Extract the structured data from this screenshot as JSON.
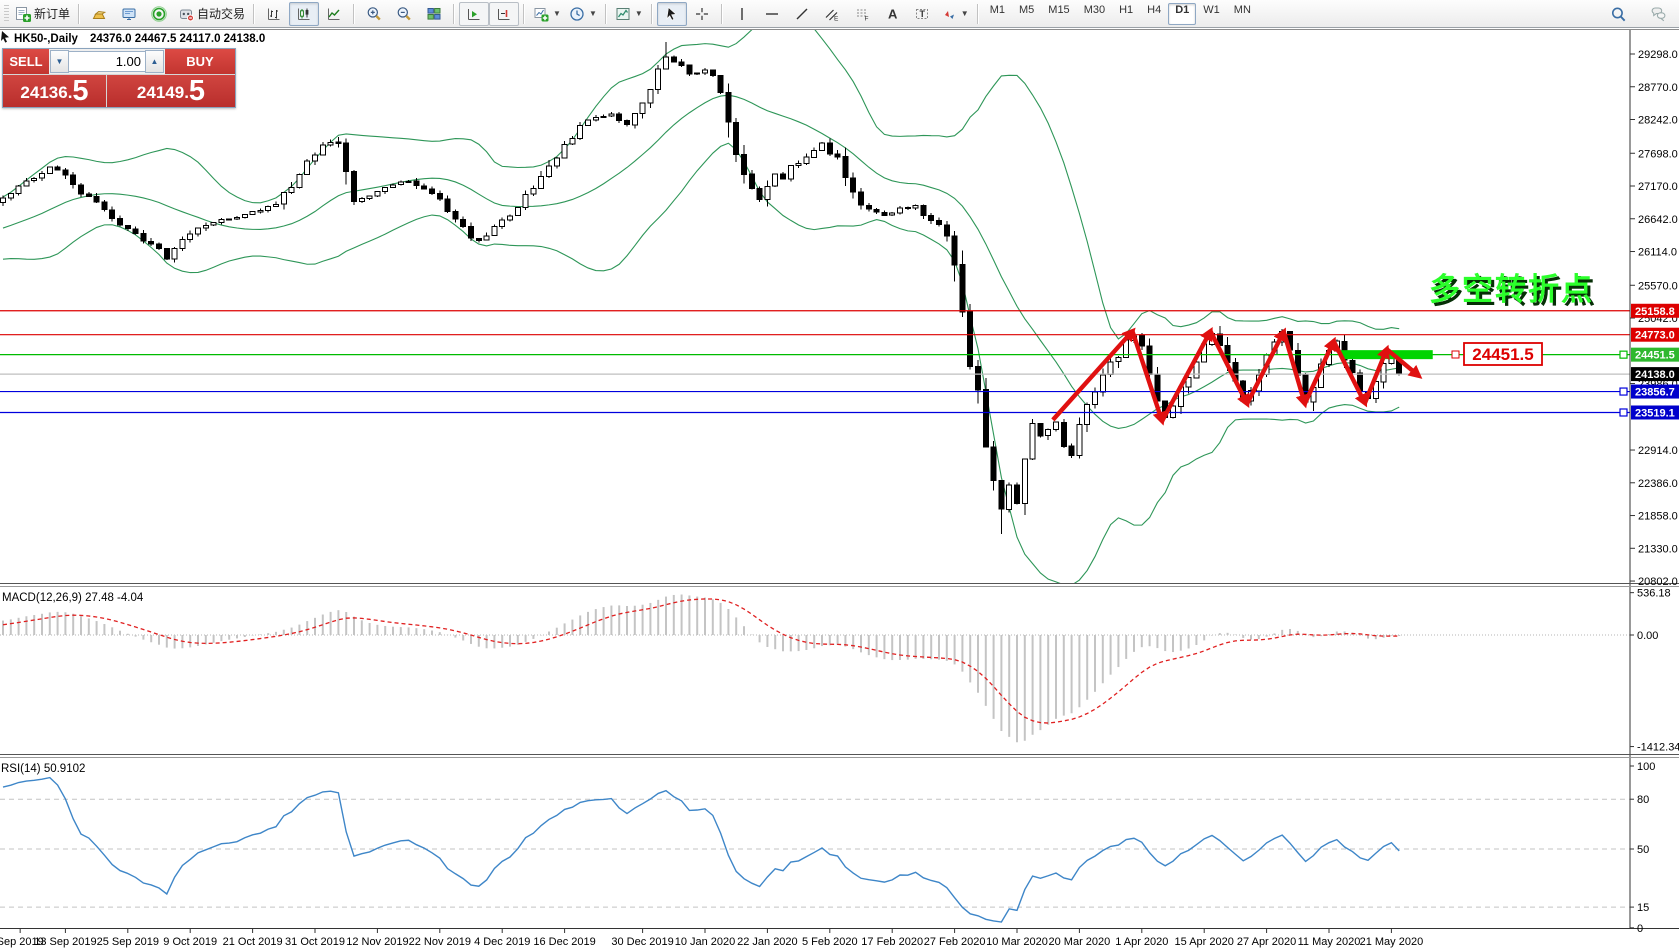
{
  "toolbar": {
    "groups": [
      {
        "items": [
          {
            "name": "new-order",
            "icon": "new-order-icon",
            "label": "新订单"
          }
        ]
      },
      {
        "items": [
          {
            "name": "market-gold",
            "icon": "gold-ingot-icon"
          },
          {
            "name": "community",
            "icon": "monitor-icon"
          },
          {
            "name": "signals",
            "icon": "sonar-icon"
          },
          {
            "name": "auto-trading",
            "icon": "robot-icon",
            "label": "自动交易"
          }
        ]
      },
      {
        "items": [
          {
            "name": "bars-chart",
            "icon": "ohlc-bars-icon"
          },
          {
            "name": "candles-chart",
            "icon": "candlestick-icon",
            "pressed": true
          },
          {
            "name": "line-chart",
            "icon": "line-chart-icon"
          }
        ]
      },
      {
        "items": [
          {
            "name": "zoom-in",
            "icon": "zoom-in-icon"
          },
          {
            "name": "zoom-out",
            "icon": "zoom-out-icon"
          },
          {
            "name": "tile-windows",
            "icon": "tile-windows-icon"
          }
        ]
      },
      {
        "items": [
          {
            "name": "auto-scroll",
            "icon": "auto-scroll-icon",
            "framed": true
          },
          {
            "name": "chart-shift",
            "icon": "chart-shift-icon",
            "framed": true
          }
        ]
      },
      {
        "items": [
          {
            "name": "indicators",
            "icon": "indicators-icon",
            "dropdown": true
          },
          {
            "name": "periods",
            "icon": "clock-icon",
            "dropdown": true
          }
        ]
      },
      {
        "items": [
          {
            "name": "chart-profile",
            "icon": "chart-combo-icon",
            "dropdown": true
          }
        ]
      },
      {
        "items": [
          {
            "name": "cursor-tool",
            "icon": "cursor-icon",
            "pressed": true
          },
          {
            "name": "crosshair-tool",
            "icon": "crosshair-icon"
          }
        ]
      },
      {
        "items": [
          {
            "name": "vertical-line-tool",
            "icon": "vertical-line-icon"
          },
          {
            "name": "horizontal-line-tool",
            "icon": "horizontal-line-icon"
          },
          {
            "name": "trendline-tool",
            "icon": "trendline-icon"
          },
          {
            "name": "channel-tool",
            "icon": "channel-icon"
          },
          {
            "name": "fibonacci-tool",
            "icon": "fibonacci-icon"
          },
          {
            "name": "text-tool",
            "icon": "text-a-icon"
          },
          {
            "name": "label-tool",
            "icon": "text-label-icon"
          },
          {
            "name": "arrows-tool",
            "icon": "arrows-icon",
            "dropdown": true
          }
        ]
      }
    ],
    "timeframes": [
      {
        "label": "M1"
      },
      {
        "label": "M5"
      },
      {
        "label": "M15"
      },
      {
        "label": "M30"
      },
      {
        "label": "H1"
      },
      {
        "label": "H4"
      },
      {
        "label": "D1",
        "pressed": true
      },
      {
        "label": "W1"
      },
      {
        "label": "MN"
      }
    ],
    "right_icons": [
      {
        "name": "search",
        "icon": "search-icon"
      },
      {
        "name": "chat",
        "icon": "chat-icon"
      }
    ]
  },
  "trade_panel": {
    "sell_label": "SELL",
    "buy_label": "BUY",
    "volume": "1.00",
    "sell_price_main": "24136.",
    "sell_price_big": "5",
    "buy_price_main": "24149.",
    "buy_price_big": "5"
  },
  "chart_data": {
    "type": "candlestick",
    "symbol_title": "HK50-,Daily",
    "ohlc_text": "24376.0 24467.5 24117.0 24138.0",
    "last_bar_exact": {
      "open": 24376.0,
      "high": 24467.5,
      "low": 24117.0,
      "close": 24138.0
    },
    "price_axis_ticks": [
      "29298.0",
      "28770.0",
      "28242.0",
      "27698.0",
      "27170.0",
      "26642.0",
      "26114.0",
      "25570.0",
      "25042.0",
      "23986.0",
      "22914.0",
      "22386.0",
      "21858.0",
      "21330.0",
      "20802.0"
    ],
    "x_axis_labels": [
      {
        "text": "Sep 2019",
        "bar": 2.2
      },
      {
        "text": "13 Sep 2019",
        "bar": 8
      },
      {
        "text": "25 Sep 2019",
        "bar": 16
      },
      {
        "text": "9 Oct 2019",
        "bar": 24
      },
      {
        "text": "21 Oct 2019",
        "bar": 32
      },
      {
        "text": "31 Oct 2019",
        "bar": 40
      },
      {
        "text": "12 Nov 2019",
        "bar": 48
      },
      {
        "text": "22 Nov 2019",
        "bar": 56
      },
      {
        "text": "4 Dec 2019",
        "bar": 64
      },
      {
        "text": "16 Dec 2019",
        "bar": 72
      },
      {
        "text": "30 Dec 2019",
        "bar": 82
      },
      {
        "text": "10 Jan 2020",
        "bar": 90
      },
      {
        "text": "22 Jan 2020",
        "bar": 98
      },
      {
        "text": "5 Feb 2020",
        "bar": 106
      },
      {
        "text": "17 Feb 2020",
        "bar": 114
      },
      {
        "text": "27 Feb 2020",
        "bar": 122
      },
      {
        "text": "10 Mar 2020",
        "bar": 130
      },
      {
        "text": "20 Mar 2020",
        "bar": 138
      },
      {
        "text": "1 Apr 2020",
        "bar": 146
      },
      {
        "text": "15 Apr 2020",
        "bar": 154
      },
      {
        "text": "27 Apr 2020",
        "bar": 162
      },
      {
        "text": "11 May 2020",
        "bar": 170
      },
      {
        "text": "21 May 2020",
        "bar": 178
      }
    ],
    "bars_total": 180,
    "pre_path": [
      [
        -20,
        26150
      ],
      [
        -16,
        26350
      ],
      [
        -12,
        26200
      ],
      [
        -8,
        26500
      ],
      [
        -4,
        26750
      ],
      [
        -1,
        26880
      ]
    ],
    "price_path": [
      [
        0,
        26950
      ],
      [
        2,
        27150
      ],
      [
        4,
        27300
      ],
      [
        6,
        27480
      ],
      [
        8,
        27320
      ],
      [
        10,
        27050
      ],
      [
        12,
        26900
      ],
      [
        14,
        26650
      ],
      [
        16,
        26480
      ],
      [
        18,
        26300
      ],
      [
        20,
        26120
      ],
      [
        21,
        25980
      ],
      [
        22,
        26120
      ],
      [
        23,
        26300
      ],
      [
        25,
        26500
      ],
      [
        27,
        26600
      ],
      [
        29,
        26650
      ],
      [
        31,
        26700
      ],
      [
        33,
        26780
      ],
      [
        35,
        26900
      ],
      [
        37,
        27200
      ],
      [
        39,
        27550
      ],
      [
        41,
        27800
      ],
      [
        43,
        27900
      ],
      [
        44,
        27450
      ],
      [
        45,
        26880
      ],
      [
        46,
        26980
      ],
      [
        48,
        27080
      ],
      [
        50,
        27180
      ],
      [
        52,
        27260
      ],
      [
        54,
        27120
      ],
      [
        56,
        26950
      ],
      [
        58,
        26600
      ],
      [
        60,
        26350
      ],
      [
        61,
        26280
      ],
      [
        62,
        26400
      ],
      [
        64,
        26600
      ],
      [
        66,
        26850
      ],
      [
        68,
        27150
      ],
      [
        70,
        27480
      ],
      [
        72,
        27820
      ],
      [
        74,
        28120
      ],
      [
        76,
        28280
      ],
      [
        78,
        28320
      ],
      [
        80,
        28180
      ],
      [
        82,
        28450
      ],
      [
        84,
        29020
      ],
      [
        85,
        29280
      ],
      [
        86,
        29160
      ],
      [
        87,
        29080
      ],
      [
        88,
        28980
      ],
      [
        89,
        29000
      ],
      [
        90,
        29060
      ],
      [
        91,
        28920
      ],
      [
        92,
        28720
      ],
      [
        93,
        28080
      ],
      [
        94,
        27680
      ],
      [
        95,
        27300
      ],
      [
        96,
        27080
      ],
      [
        97,
        26950
      ],
      [
        98,
        27180
      ],
      [
        99,
        27380
      ],
      [
        100,
        27300
      ],
      [
        101,
        27480
      ],
      [
        102,
        27560
      ],
      [
        103,
        27620
      ],
      [
        104,
        27760
      ],
      [
        105,
        27880
      ],
      [
        106,
        27720
      ],
      [
        107,
        27600
      ],
      [
        108,
        27380
      ],
      [
        109,
        27060
      ],
      [
        110,
        26880
      ],
      [
        111,
        26800
      ],
      [
        112,
        26720
      ],
      [
        113,
        26680
      ],
      [
        114,
        26760
      ],
      [
        115,
        26820
      ],
      [
        116,
        26800
      ],
      [
        117,
        26840
      ],
      [
        118,
        26720
      ],
      [
        119,
        26620
      ],
      [
        120,
        26560
      ],
      [
        121,
        26470
      ],
      [
        122,
        25760
      ],
      [
        123,
        25310
      ],
      [
        124,
        24420
      ],
      [
        125,
        23780
      ],
      [
        126,
        22960
      ],
      [
        127,
        22440
      ],
      [
        128,
        21960
      ],
      [
        129,
        22340
      ],
      [
        130,
        22130
      ],
      [
        131,
        22880
      ],
      [
        132,
        23340
      ],
      [
        133,
        23140
      ],
      [
        134,
        23260
      ],
      [
        135,
        23360
      ],
      [
        136,
        23040
      ],
      [
        137,
        22860
      ],
      [
        138,
        23230
      ],
      [
        139,
        23560
      ],
      [
        140,
        23900
      ],
      [
        141,
        24080
      ],
      [
        142,
        24280
      ],
      [
        143,
        24440
      ],
      [
        144,
        24640
      ],
      [
        145,
        24780
      ],
      [
        146,
        24520
      ],
      [
        147,
        24180
      ],
      [
        148,
        23760
      ],
      [
        149,
        23460
      ],
      [
        150,
        23680
      ],
      [
        151,
        23900
      ],
      [
        152,
        24140
      ],
      [
        153,
        24380
      ],
      [
        154,
        24620
      ],
      [
        155,
        24810
      ],
      [
        156,
        24560
      ],
      [
        157,
        24280
      ],
      [
        158,
        23960
      ],
      [
        159,
        23690
      ],
      [
        160,
        23920
      ],
      [
        161,
        24160
      ],
      [
        162,
        24420
      ],
      [
        163,
        24640
      ],
      [
        164,
        24800
      ],
      [
        165,
        24420
      ],
      [
        166,
        24080
      ],
      [
        167,
        23660
      ],
      [
        168,
        23920
      ],
      [
        169,
        24220
      ],
      [
        170,
        24480
      ],
      [
        171,
        24660
      ],
      [
        172,
        24420
      ],
      [
        173,
        24140
      ],
      [
        174,
        23920
      ],
      [
        175,
        23770
      ],
      [
        176,
        24040
      ],
      [
        177,
        24300
      ],
      [
        178,
        24450
      ],
      [
        179,
        24138
      ]
    ],
    "wick_overrides": {
      "85": {
        "high": 29490
      },
      "128": {
        "low": 21560
      }
    },
    "levels": [
      {
        "price": 25158.8,
        "label": "25158.8",
        "color": "#dd0000",
        "label_bg": "#dd0000",
        "handles": false
      },
      {
        "price": 24773.0,
        "label": "24773.0",
        "color": "#dd0000",
        "label_bg": "#dd0000",
        "handles": false
      },
      {
        "price": 24451.5,
        "label": "24451.5",
        "color": "#00bb00",
        "label_bg": "#2eb82e",
        "handles": true
      },
      {
        "price": 24138.0,
        "label": "24138.0",
        "color": "#bfbfbf",
        "label_bg": "#000000",
        "handles": false
      },
      {
        "price": 23856.7,
        "label": "23856.7",
        "color": "#0000dd",
        "label_bg": "#0000cc",
        "handles": true
      },
      {
        "price": 23519.1,
        "label": "23519.1",
        "color": "#0000dd",
        "label_bg": "#0000cc",
        "handles": true
      }
    ],
    "indicators": {
      "bollinger": {
        "period": 20,
        "deviation": 2,
        "color": "#2E9658"
      },
      "macd": {
        "label": "MACD(12,26,9)",
        "value_main": "27.48",
        "value_signal": "-4.04",
        "fast": 12,
        "slow": 26,
        "signal": 9,
        "axis_ticks": [
          {
            "text": "536.18",
            "value": 536.18
          },
          {
            "text": "0.00",
            "value": 0
          },
          {
            "text": "-1412.34",
            "value": -1412.34
          }
        ],
        "hist_color": "#c4c4c4",
        "signal_color": "#e02020"
      },
      "rsi": {
        "label": "RSI(14)",
        "value": "50.9102",
        "period": 14,
        "color": "#3E86C8",
        "level_lines": [
          80,
          50,
          15
        ],
        "axis_ticks": [
          {
            "text": "100",
            "value": 100
          },
          {
            "text": "80",
            "value": 80
          },
          {
            "text": "50",
            "value": 50
          },
          {
            "text": "15",
            "value": 15
          },
          {
            "text": "0",
            "value": 2.5
          }
        ]
      }
    },
    "annotations": {
      "headline": {
        "text": "多空转折点",
        "color": "#2bff2b",
        "shadow": "#062e06"
      },
      "price_tag": {
        "text": "24451.5",
        "color": "#dd0000"
      },
      "highlight_bar": {
        "price": 24451.5,
        "bar_start": 171.5,
        "bar_end": 183.3,
        "color": "#00d400"
      },
      "zigzag": {
        "color": "#e01010",
        "points": [
          [
            134.6,
            23400
          ],
          [
            144.8,
            24830
          ],
          [
            148.6,
            23380
          ],
          [
            154.8,
            24830
          ],
          [
            159.5,
            23660
          ],
          [
            164.2,
            24820
          ],
          [
            166.9,
            23660
          ],
          [
            170.6,
            24670
          ],
          [
            174.6,
            23670
          ],
          [
            177.4,
            24540
          ],
          [
            181.5,
            24110
          ]
        ]
      }
    }
  }
}
